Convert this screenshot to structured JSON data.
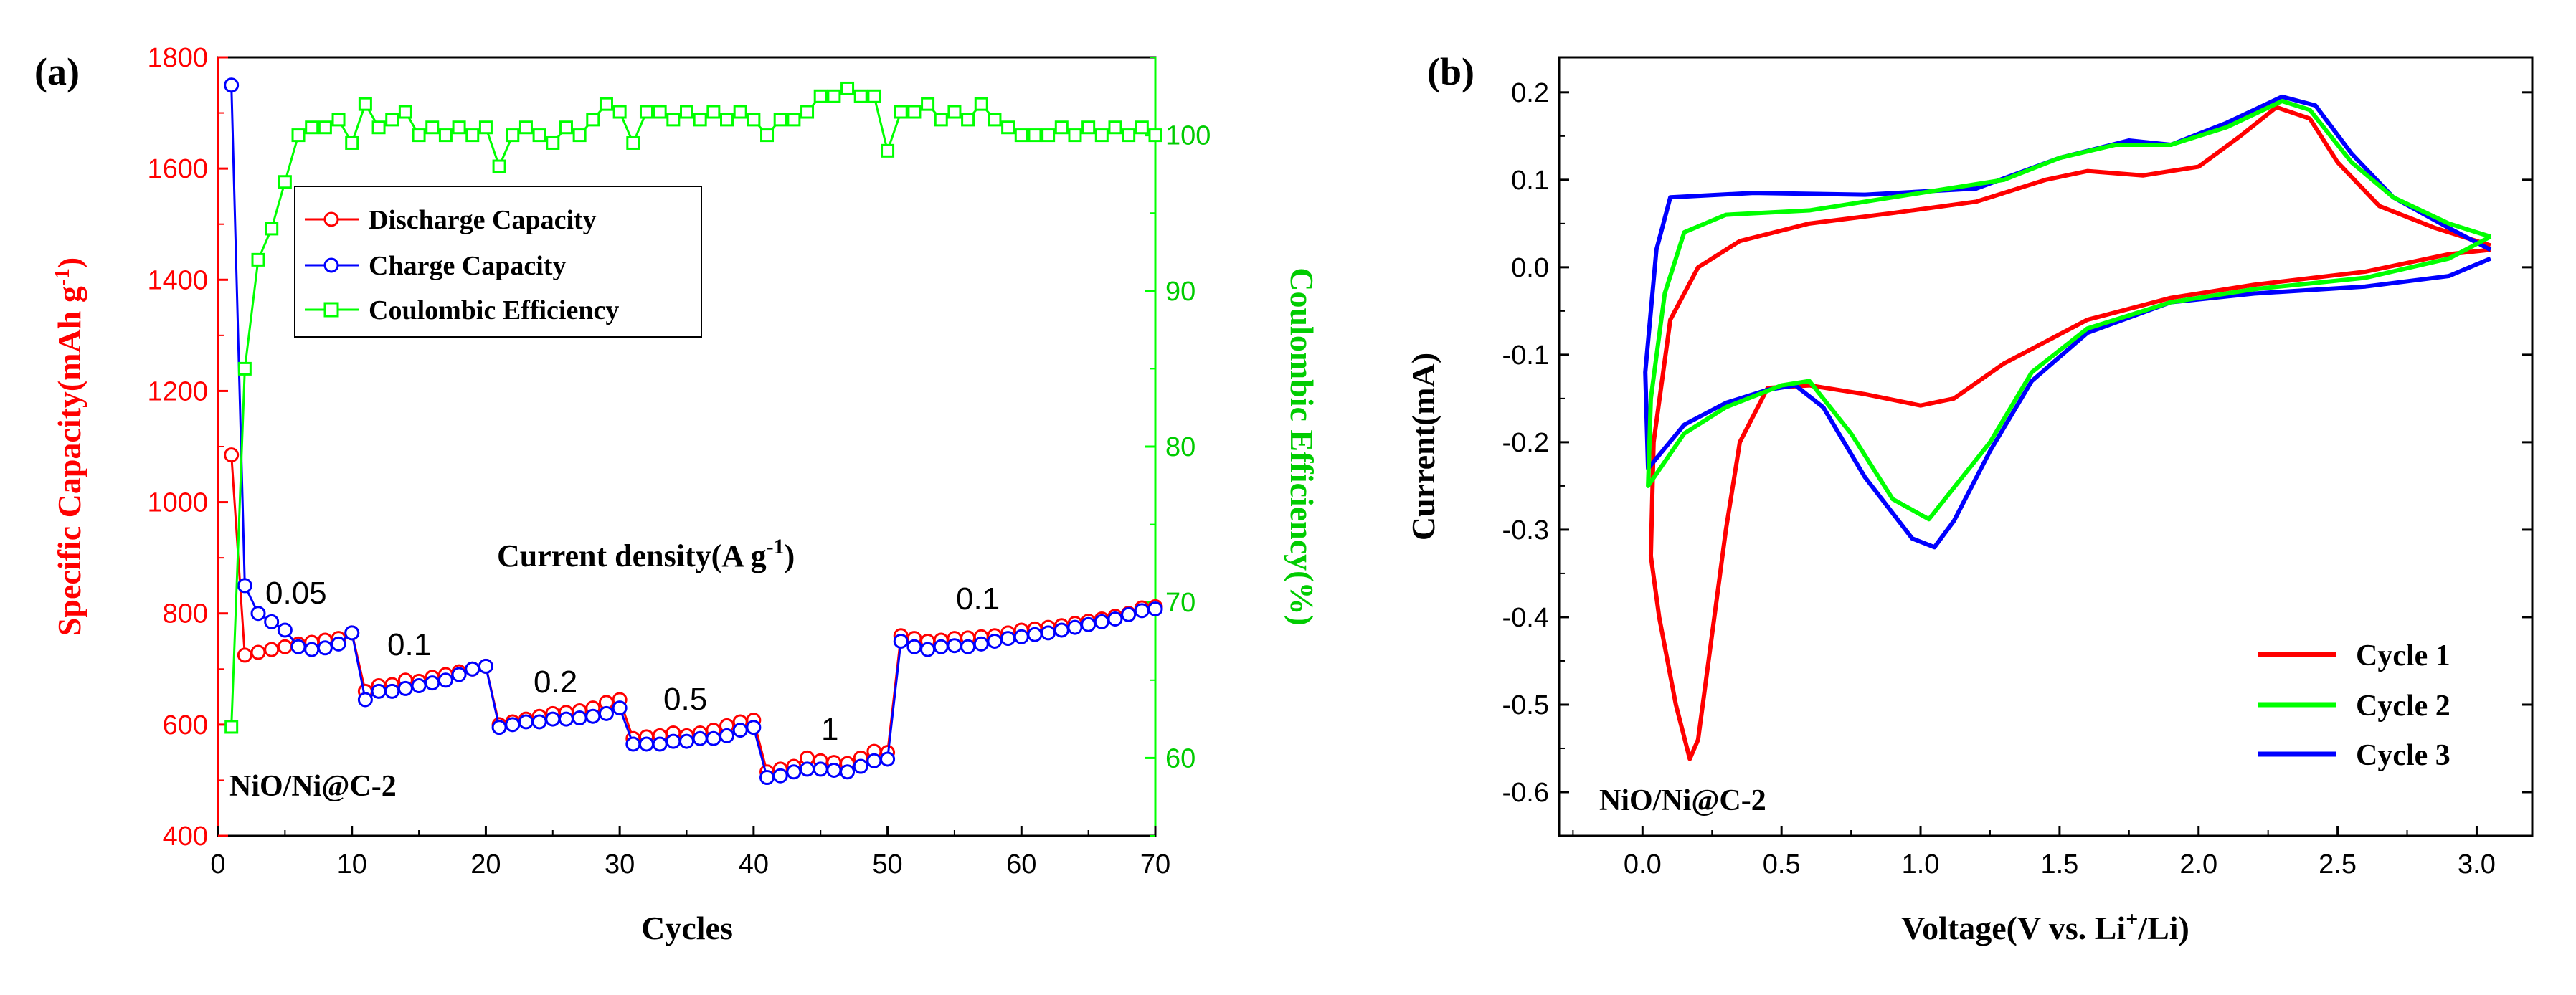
{
  "colors": {
    "red": "#ff0000",
    "blue": "#0000ff",
    "green": "#00ff00",
    "green_axis": "#00cc00",
    "black": "#000000"
  },
  "chart_data": [
    {
      "panel_label": "(a)",
      "type": "line",
      "title": "",
      "xlabel": "Cycles",
      "ylabel_left": "Specific Capacity(mAh g",
      "ylabel_left_sup": "-1",
      "ylabel_left_end": ")",
      "ylabel_right": "Coulombic Efficiency(%)",
      "xlim": [
        0,
        70
      ],
      "ylim_left": [
        400,
        1800
      ],
      "ylim_right": [
        55,
        105
      ],
      "x_ticks": [
        "0",
        "10",
        "20",
        "30",
        "40",
        "50",
        "60",
        "70"
      ],
      "y_ticks_left": [
        "400",
        "600",
        "800",
        "1000",
        "1200",
        "1400",
        "1600",
        "1800"
      ],
      "y_ticks_right": [
        "60",
        "70",
        "80",
        "90",
        "100"
      ],
      "legend": [
        "Discharge Capacity",
        "Charge Capacity",
        "Coulombic Efficiency"
      ],
      "legend_position": "upper-left",
      "annotation_title": "Current density(A g",
      "annotation_title_sup": "-1",
      "annotation_title_end": ")",
      "rate_labels": [
        "0.05",
        "0.1",
        "0.2",
        "0.5",
        "1",
        "0.1"
      ],
      "sample_label": "NiO/Ni@C-2",
      "x": [
        1,
        2,
        3,
        4,
        5,
        6,
        7,
        8,
        9,
        10,
        11,
        12,
        13,
        14,
        15,
        16,
        17,
        18,
        19,
        20,
        21,
        22,
        23,
        24,
        25,
        26,
        27,
        28,
        29,
        30,
        31,
        32,
        33,
        34,
        35,
        36,
        37,
        38,
        39,
        40,
        41,
        42,
        43,
        44,
        45,
        46,
        47,
        48,
        49,
        50,
        51,
        52,
        53,
        54,
        55,
        56,
        57,
        58,
        59,
        60,
        61,
        62,
        63,
        64,
        65,
        66,
        67,
        68,
        69,
        70
      ],
      "series": [
        {
          "name": "Discharge Capacity",
          "axis": "left",
          "values": [
            1085,
            725,
            730,
            735,
            740,
            745,
            748,
            752,
            755,
            765,
            660,
            670,
            672,
            680,
            678,
            685,
            690,
            695,
            700,
            705,
            600,
            605,
            610,
            615,
            620,
            622,
            625,
            630,
            640,
            645,
            575,
            578,
            580,
            585,
            580,
            585,
            590,
            598,
            605,
            608,
            515,
            520,
            525,
            540,
            535,
            532,
            530,
            540,
            552,
            550,
            760,
            755,
            750,
            752,
            755,
            756,
            758,
            760,
            765,
            770,
            772,
            775,
            778,
            782,
            786,
            790,
            795,
            800,
            810,
            812
          ]
        },
        {
          "name": "Charge Capacity",
          "axis": "left",
          "values": [
            1750,
            850,
            800,
            785,
            770,
            740,
            735,
            738,
            745,
            765,
            645,
            660,
            660,
            665,
            670,
            675,
            680,
            690,
            700,
            705,
            595,
            600,
            605,
            605,
            610,
            610,
            612,
            615,
            620,
            630,
            565,
            565,
            565,
            570,
            570,
            575,
            575,
            580,
            590,
            595,
            505,
            508,
            515,
            520,
            520,
            518,
            515,
            525,
            535,
            538,
            750,
            740,
            735,
            740,
            742,
            740,
            745,
            750,
            755,
            758,
            762,
            765,
            770,
            775,
            780,
            785,
            790,
            798,
            805,
            808
          ]
        },
        {
          "name": "Coulombic Efficiency",
          "axis": "right",
          "values": [
            62,
            85,
            92,
            94,
            97,
            100,
            100.5,
            100.5,
            101,
            99.5,
            102,
            100.5,
            101,
            101.5,
            100,
            100.5,
            100,
            100.5,
            100,
            100.5,
            98,
            100,
            100.5,
            100,
            99.5,
            100.5,
            100,
            101,
            102,
            101.5,
            99.5,
            101.5,
            101.5,
            101,
            101.5,
            101,
            101.5,
            101,
            101.5,
            101,
            100,
            101,
            101,
            101.5,
            102.5,
            102.5,
            103,
            102.5,
            102.5,
            99,
            101.5,
            101.5,
            102,
            101,
            101.5,
            101,
            102,
            101,
            100.5,
            100,
            100,
            100,
            100.5,
            100,
            100.5,
            100,
            100.5,
            100,
            100.5,
            100
          ]
        }
      ]
    },
    {
      "panel_label": "(b)",
      "type": "line",
      "title": "",
      "xlabel": "Voltage(V vs. Li",
      "xlabel_sup": "+",
      "xlabel_end": "/Li)",
      "ylabel": "Current(mA)",
      "xlim": [
        -0.3,
        3.2
      ],
      "ylim": [
        -0.65,
        0.24
      ],
      "x_ticks": [
        "0.0",
        "0.5",
        "1.0",
        "1.5",
        "2.0",
        "2.5",
        "3.0"
      ],
      "y_ticks": [
        "0.2",
        "0.1",
        "0.0",
        "-0.1",
        "-0.2",
        "-0.3",
        "-0.4",
        "-0.5",
        "-0.6"
      ],
      "legend": [
        "Cycle 1",
        "Cycle 2",
        "Cycle 3"
      ],
      "legend_position": "lower-right",
      "sample_label": "NiO/Ni@C-2",
      "series": [
        {
          "name": "Cycle 1",
          "points": [
            [
              3.05,
              0.02
            ],
            [
              2.9,
              0.015
            ],
            [
              2.6,
              -0.005
            ],
            [
              2.2,
              -0.02
            ],
            [
              1.9,
              -0.035
            ],
            [
              1.6,
              -0.06
            ],
            [
              1.3,
              -0.11
            ],
            [
              1.12,
              -0.15
            ],
            [
              1.0,
              -0.158
            ],
            [
              0.8,
              -0.145
            ],
            [
              0.6,
              -0.135
            ],
            [
              0.45,
              -0.138
            ],
            [
              0.35,
              -0.2
            ],
            [
              0.3,
              -0.3
            ],
            [
              0.25,
              -0.42
            ],
            [
              0.2,
              -0.54
            ],
            [
              0.17,
              -0.562
            ],
            [
              0.12,
              -0.5
            ],
            [
              0.06,
              -0.4
            ],
            [
              0.03,
              -0.33
            ],
            [
              0.04,
              -0.2
            ],
            [
              0.1,
              -0.06
            ],
            [
              0.2,
              0.0
            ],
            [
              0.35,
              0.03
            ],
            [
              0.6,
              0.05
            ],
            [
              0.9,
              0.062
            ],
            [
              1.2,
              0.075
            ],
            [
              1.45,
              0.1
            ],
            [
              1.6,
              0.11
            ],
            [
              1.8,
              0.105
            ],
            [
              2.0,
              0.115
            ],
            [
              2.15,
              0.15
            ],
            [
              2.28,
              0.183
            ],
            [
              2.4,
              0.17
            ],
            [
              2.5,
              0.12
            ],
            [
              2.65,
              0.07
            ],
            [
              2.85,
              0.045
            ],
            [
              3.05,
              0.025
            ]
          ]
        },
        {
          "name": "Cycle 2",
          "points": [
            [
              3.05,
              0.035
            ],
            [
              2.9,
              0.01
            ],
            [
              2.6,
              -0.012
            ],
            [
              2.2,
              -0.025
            ],
            [
              1.9,
              -0.04
            ],
            [
              1.6,
              -0.07
            ],
            [
              1.4,
              -0.12
            ],
            [
              1.25,
              -0.2
            ],
            [
              1.1,
              -0.26
            ],
            [
              1.03,
              -0.288
            ],
            [
              0.9,
              -0.265
            ],
            [
              0.75,
              -0.19
            ],
            [
              0.6,
              -0.13
            ],
            [
              0.5,
              -0.135
            ],
            [
              0.3,
              -0.16
            ],
            [
              0.15,
              -0.19
            ],
            [
              0.02,
              -0.25
            ],
            [
              0.03,
              -0.15
            ],
            [
              0.08,
              -0.03
            ],
            [
              0.15,
              0.04
            ],
            [
              0.3,
              0.06
            ],
            [
              0.6,
              0.065
            ],
            [
              1.0,
              0.085
            ],
            [
              1.3,
              0.1
            ],
            [
              1.5,
              0.125
            ],
            [
              1.7,
              0.14
            ],
            [
              1.9,
              0.14
            ],
            [
              2.1,
              0.16
            ],
            [
              2.3,
              0.19
            ],
            [
              2.4,
              0.18
            ],
            [
              2.55,
              0.12
            ],
            [
              2.7,
              0.08
            ],
            [
              2.9,
              0.05
            ],
            [
              3.05,
              0.035
            ]
          ]
        },
        {
          "name": "Cycle 3",
          "points": [
            [
              3.05,
              0.01
            ],
            [
              2.9,
              -0.01
            ],
            [
              2.6,
              -0.022
            ],
            [
              2.2,
              -0.03
            ],
            [
              1.9,
              -0.04
            ],
            [
              1.6,
              -0.075
            ],
            [
              1.4,
              -0.13
            ],
            [
              1.25,
              -0.21
            ],
            [
              1.12,
              -0.29
            ],
            [
              1.05,
              -0.32
            ],
            [
              0.97,
              -0.31
            ],
            [
              0.8,
              -0.24
            ],
            [
              0.65,
              -0.16
            ],
            [
              0.55,
              -0.135
            ],
            [
              0.45,
              -0.14
            ],
            [
              0.3,
              -0.155
            ],
            [
              0.15,
              -0.18
            ],
            [
              0.02,
              -0.23
            ],
            [
              0.01,
              -0.12
            ],
            [
              0.05,
              0.02
            ],
            [
              0.1,
              0.08
            ],
            [
              0.4,
              0.085
            ],
            [
              0.8,
              0.083
            ],
            [
              1.2,
              0.09
            ],
            [
              1.5,
              0.125
            ],
            [
              1.75,
              0.145
            ],
            [
              1.9,
              0.14
            ],
            [
              2.1,
              0.165
            ],
            [
              2.3,
              0.195
            ],
            [
              2.42,
              0.185
            ],
            [
              2.55,
              0.13
            ],
            [
              2.7,
              0.08
            ],
            [
              2.9,
              0.045
            ],
            [
              3.05,
              0.02
            ]
          ]
        }
      ]
    }
  ]
}
